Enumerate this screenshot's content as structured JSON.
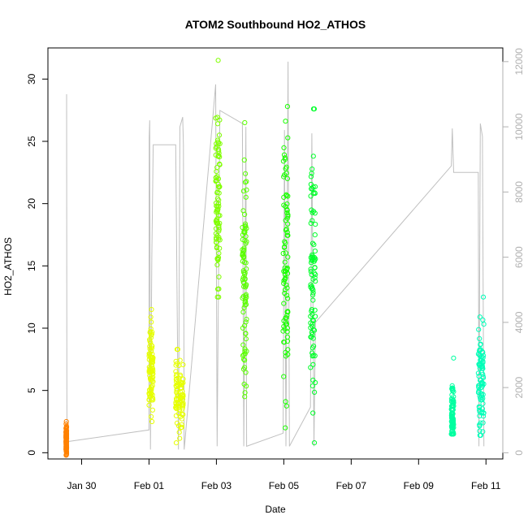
{
  "chart_data": {
    "type": "scatter",
    "title": "ATOM2 Southbound HO2_ATHOS",
    "xlabel": "Date",
    "ylabel": "HO2_ATHOS",
    "x_ticks": [
      "Jan 30",
      "Feb 01",
      "Feb 03",
      "Feb 05",
      "Feb 07",
      "Feb 09",
      "Feb 11"
    ],
    "xlim": [
      "2017-01-29T00:00",
      "2017-02-11T12:00"
    ],
    "y_left": {
      "lim": [
        -0.5,
        32.5
      ],
      "ticks": [
        0,
        5,
        10,
        15,
        20,
        25,
        30
      ]
    },
    "y_right": {
      "lim": [
        -190,
        12420
      ],
      "ticks": [
        0,
        2000,
        4000,
        6000,
        8000,
        10000,
        12000
      ],
      "color": "#b0b0b0"
    },
    "grid": false,
    "legend": "none",
    "scatter_series": [
      {
        "x_start": "2017-01-29T12:50",
        "x_end": "2017-01-29T13:20",
        "y_min": -0.2,
        "y_max": 2.5,
        "y_center": 1.0,
        "color": "#ff8000"
      },
      {
        "x_start": "2017-02-01T00:00",
        "x_end": "2017-02-01T03:00",
        "y_min": 2.5,
        "y_max": 11.5,
        "y_center": 6.8,
        "color": "#e6ff00"
      },
      {
        "x_start": "2017-02-01T19:00",
        "x_end": "2017-02-02T00:30",
        "y_min": 0.8,
        "y_max": 8.3,
        "y_center": 4.5,
        "color": "#e6ff00"
      },
      {
        "x_start": "2017-02-02T23:30",
        "x_end": "2017-02-03T02:30",
        "y_min": 12.5,
        "y_max": 31.5,
        "y_center": 20.0,
        "color": "#80ff00"
      },
      {
        "x_start": "2017-02-03T18:30",
        "x_end": "2017-02-03T21:30",
        "y_min": 4.5,
        "y_max": 26.5,
        "y_center": 14.0,
        "color": "#5aff00"
      },
      {
        "x_start": "2017-02-04T23:30",
        "x_end": "2017-02-05T03:00",
        "y_min": 2.0,
        "y_max": 27.8,
        "y_center": 14.5,
        "color": "#1aff00"
      },
      {
        "x_start": "2017-02-05T19:00",
        "x_end": "2017-02-05T22:30",
        "y_min": 0.8,
        "y_max": 27.6,
        "y_center": 14.0,
        "color": "#00ff2a"
      },
      {
        "x_start": "2017-02-09T23:20",
        "x_end": "2017-02-10T01:00",
        "y_min": 1.5,
        "y_max": 7.6,
        "y_center": 2.8,
        "color": "#00ffa0"
      },
      {
        "x_start": "2017-02-10T18:30",
        "x_end": "2017-02-10T22:30",
        "y_min": 1.4,
        "y_max": 12.5,
        "y_center": 6.0,
        "color": "#00ffb8"
      }
    ],
    "line_series": {
      "axis": "right",
      "color": "#c0c0c0",
      "points": [
        [
          "2017-01-29T13:20",
          11000
        ],
        [
          "2017-01-29T13:30",
          2000
        ],
        [
          "2017-01-29T13:35",
          0
        ],
        [
          "2017-01-29T13:40",
          340
        ],
        [
          "2017-02-01T00:00",
          700
        ],
        [
          "2017-02-01T00:10",
          9700
        ],
        [
          "2017-02-01T00:30",
          10200
        ],
        [
          "2017-02-01T01:00",
          100
        ],
        [
          "2017-02-01T02:00",
          6000
        ],
        [
          "2017-02-01T03:00",
          9450
        ],
        [
          "2017-02-01T19:00",
          9450
        ],
        [
          "2017-02-01T21:00",
          100
        ],
        [
          "2017-02-01T22:00",
          10000
        ],
        [
          "2017-02-02T00:00",
          10300
        ],
        [
          "2017-02-02T00:30",
          9450
        ],
        [
          "2017-02-02T01:00",
          100
        ],
        [
          "2017-02-02T01:30",
          300
        ],
        [
          "2017-02-02T23:30",
          11300
        ],
        [
          "2017-02-03T00:30",
          200
        ],
        [
          "2017-02-03T02:30",
          10500
        ],
        [
          "2017-02-03T18:30",
          10100
        ],
        [
          "2017-02-03T19:30",
          200
        ],
        [
          "2017-02-03T21:00",
          10000
        ],
        [
          "2017-02-03T21:30",
          200
        ],
        [
          "2017-02-04T23:30",
          600
        ],
        [
          "2017-02-05T00:30",
          9900
        ],
        [
          "2017-02-05T01:30",
          200
        ],
        [
          "2017-02-05T03:00",
          12000
        ],
        [
          "2017-02-05T04:00",
          200
        ],
        [
          "2017-02-05T19:00",
          1400
        ],
        [
          "2017-02-05T20:00",
          9800
        ],
        [
          "2017-02-05T21:30",
          200
        ],
        [
          "2017-02-05T22:30",
          4000
        ],
        [
          "2017-02-09T23:20",
          8800
        ],
        [
          "2017-02-10T00:00",
          9950
        ],
        [
          "2017-02-10T01:00",
          8600
        ],
        [
          "2017-02-10T18:30",
          8600
        ],
        [
          "2017-02-10T19:00",
          200
        ],
        [
          "2017-02-10T20:00",
          10100
        ],
        [
          "2017-02-10T21:30",
          9700
        ],
        [
          "2017-02-10T22:30",
          200
        ]
      ]
    }
  }
}
